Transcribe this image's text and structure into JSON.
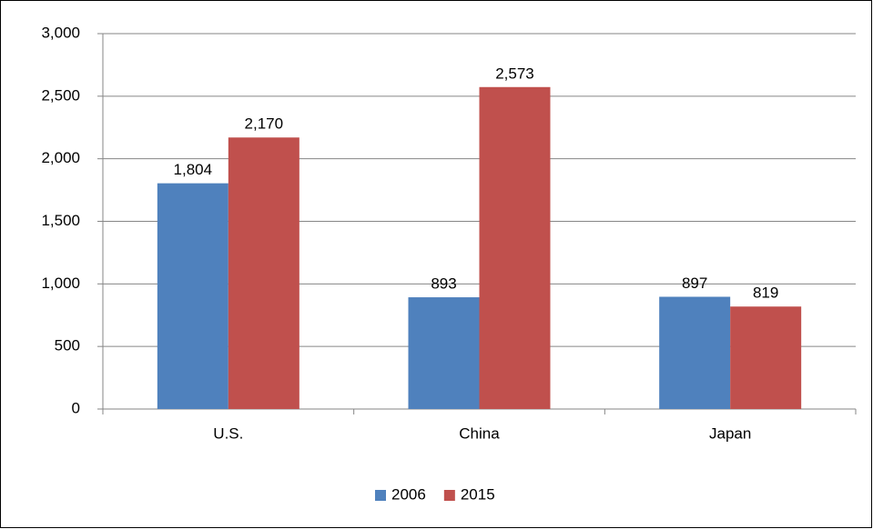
{
  "chart_data": {
    "type": "bar",
    "categories": [
      "U.S.",
      "China",
      "Japan"
    ],
    "series": [
      {
        "name": "2006",
        "color": "#4f81bd",
        "values": [
          1804,
          893,
          897
        ],
        "value_labels": [
          "1,804",
          "893",
          "897"
        ]
      },
      {
        "name": "2015",
        "color": "#c0504d",
        "values": [
          2170,
          2573,
          819
        ],
        "value_labels": [
          "2,170",
          "2,573",
          "819"
        ]
      }
    ],
    "ylim": [
      0,
      3000
    ],
    "yticks": [
      0,
      500,
      {
        "value": 1000,
        "label": "1,000"
      },
      {
        "value": 1500,
        "label": "1,500"
      },
      {
        "value": 2000,
        "label": "2,000"
      },
      {
        "value": 2500,
        "label": "2,500"
      },
      {
        "value": 3000,
        "label": "3,000"
      }
    ],
    "grid": true,
    "legend": "bottom"
  }
}
